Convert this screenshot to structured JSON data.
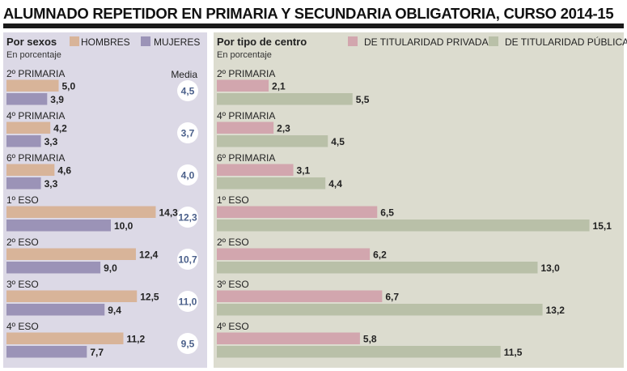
{
  "title": "ALUMNADO REPETIDOR EN PRIMARIA Y SECUNDARIA OBLIGATORIA, CURSO 2014-15",
  "chart_data": [
    {
      "type": "bar",
      "title": "Por sexos",
      "subtitle": "En porcentaje",
      "categories": [
        "2º PRIMARIA",
        "4º PRIMARIA",
        "6º PRIMARIA",
        "1º ESO",
        "2º ESO",
        "3º ESO",
        "4º ESO"
      ],
      "series": [
        {
          "name": "HOMBRES",
          "values": [
            5.0,
            4.2,
            4.6,
            14.3,
            12.4,
            12.5,
            11.2
          ],
          "labels": [
            "5,0",
            "4,2",
            "4,6",
            "14,3",
            "12,4",
            "12,5",
            "11,2"
          ],
          "color": "#d8b499"
        },
        {
          "name": "MUJERES",
          "values": [
            3.9,
            3.3,
            3.3,
            10.0,
            9.0,
            9.4,
            7.7
          ],
          "labels": [
            "3,9",
            "3,3",
            "3,3",
            "10,0",
            "9,0",
            "9,4",
            "7,7"
          ],
          "color": "#9b93b7"
        }
      ],
      "media_label": "Media",
      "media": [
        "4,5",
        "3,7",
        "4,0",
        "12,3",
        "10,7",
        "11,0",
        "9,5"
      ],
      "xlim": [
        0,
        16
      ],
      "background": "#dcd9e6",
      "legend": "top"
    },
    {
      "type": "bar",
      "title": "Por tipo de centro",
      "subtitle": "En porcentaje",
      "categories": [
        "2º PRIMARIA",
        "4º PRIMARIA",
        "6º PRIMARIA",
        "1º ESO",
        "2º ESO",
        "3º ESO",
        "4º ESO"
      ],
      "series": [
        {
          "name": "DE TITULARIDAD PRIVADA",
          "values": [
            2.1,
            2.3,
            3.1,
            6.5,
            6.2,
            6.7,
            5.8
          ],
          "labels": [
            "2,1",
            "2,3",
            "3,1",
            "6,5",
            "6,2",
            "6,7",
            "5,8"
          ],
          "color": "#d2a6ae"
        },
        {
          "name": "DE TITULARIDAD PÚBLICA",
          "values": [
            5.5,
            4.5,
            4.4,
            15.1,
            13.0,
            13.2,
            11.5
          ],
          "labels": [
            "5,5",
            "4,5",
            "4,4",
            "15,1",
            "13,0",
            "13,2",
            "11,5"
          ],
          "color": "#b9c0a8"
        }
      ],
      "xlim": [
        0,
        16
      ],
      "background": "#dcdccf",
      "legend": "top"
    }
  ]
}
